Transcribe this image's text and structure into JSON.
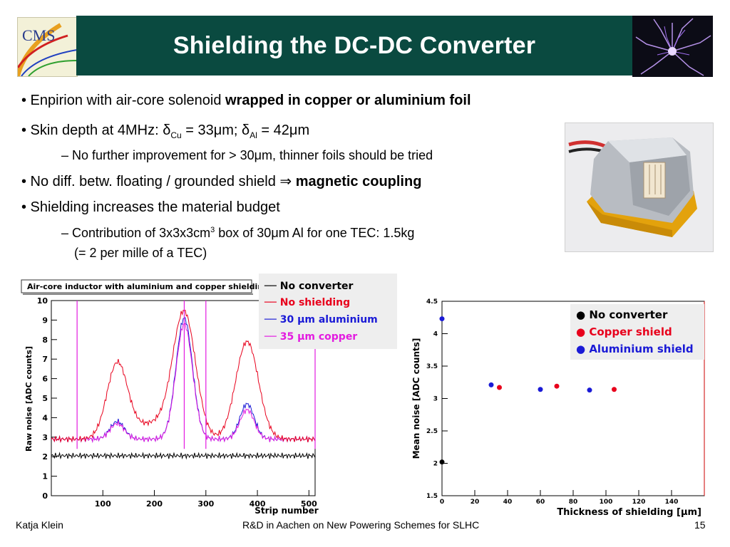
{
  "slide": {
    "title": "Shielding the DC-DC Converter",
    "logo_text": "CMS"
  },
  "bullets": [
    {
      "prefix": "• Enpirion with air-core solenoid ",
      "bold": "wrapped in copper or aluminium foil"
    },
    {
      "prefix": "• Skin depth at 4MHz: ",
      "d1": "δ",
      "sub1": "Cu",
      "mid": " = 33",
      "mu1": "μ",
      "m1": "m; ",
      "d2": "δ",
      "sub2": "Al",
      "end": " = 42",
      "mu2": "μ",
      "m2": "m"
    },
    {
      "dash": "– ",
      "text1": "No further improvement for > 30",
      "mu": "μ",
      "text2": "m, thinner foils should be tried"
    },
    {
      "prefix": "• No diff. betw. floating / grounded shield ",
      "arrow": "⇒",
      "bold": " magnetic coupling"
    },
    {
      "prefix": "• Shielding increases the material budget"
    },
    {
      "dash": "– ",
      "text1": "Contribution of 3x3x3cm",
      "sup": "3",
      "text2": " box of 30",
      "mu": "μ",
      "text3": "m Al for one TEC: 1.5kg"
    },
    {
      "text": "(= 2 per mille of a TEC)"
    }
  ],
  "plot_left": {
    "title": "Air-core inductor with aluminium and copper shielding",
    "ylabel": "Raw noise [ADC counts]",
    "xlabel": "Strip number",
    "xticks": [
      "100",
      "200",
      "300",
      "400",
      "500"
    ],
    "yticks": [
      "0",
      "1",
      "2",
      "3",
      "4",
      "5",
      "6",
      "7",
      "8",
      "9",
      "10"
    ],
    "legend": [
      {
        "label": "No converter",
        "color": "#000000"
      },
      {
        "label": "No shielding",
        "color": "#e8001c"
      },
      {
        "label": "30 μm aluminium",
        "color": "#1a1ad6"
      },
      {
        "label": "35 μm copper",
        "color": "#e31be0"
      }
    ]
  },
  "chart_data": [
    {
      "type": "scatter",
      "title": "",
      "xlabel": "Thickness of shielding [μm]",
      "ylabel": "Mean noise [ADC counts]",
      "xlim": [
        0,
        160
      ],
      "ylim": [
        1.5,
        4.5
      ],
      "xticks": [
        "0",
        "20",
        "40",
        "60",
        "80",
        "100",
        "120",
        "140"
      ],
      "yticks": [
        "1.5",
        "2",
        "2.5",
        "3",
        "3.5",
        "4",
        "4.5"
      ],
      "legend_position": "top-right",
      "series": [
        {
          "name": "No converter",
          "color": "#000000",
          "x": [
            0
          ],
          "y": [
            2.02
          ]
        },
        {
          "name": "Copper shield",
          "color": "#e8001c",
          "x": [
            35,
            70,
            105
          ],
          "y": [
            3.17,
            3.19,
            3.14
          ]
        },
        {
          "name": "Aluminium shield",
          "color": "#1a1ad6",
          "x": [
            0,
            30,
            60,
            90
          ],
          "y": [
            4.23,
            3.21,
            3.14,
            3.13
          ]
        }
      ]
    }
  ],
  "footer": {
    "author": "Katja Klein",
    "talk": "R&D in Aachen on New Powering Schemes for SLHC",
    "page": "15"
  }
}
